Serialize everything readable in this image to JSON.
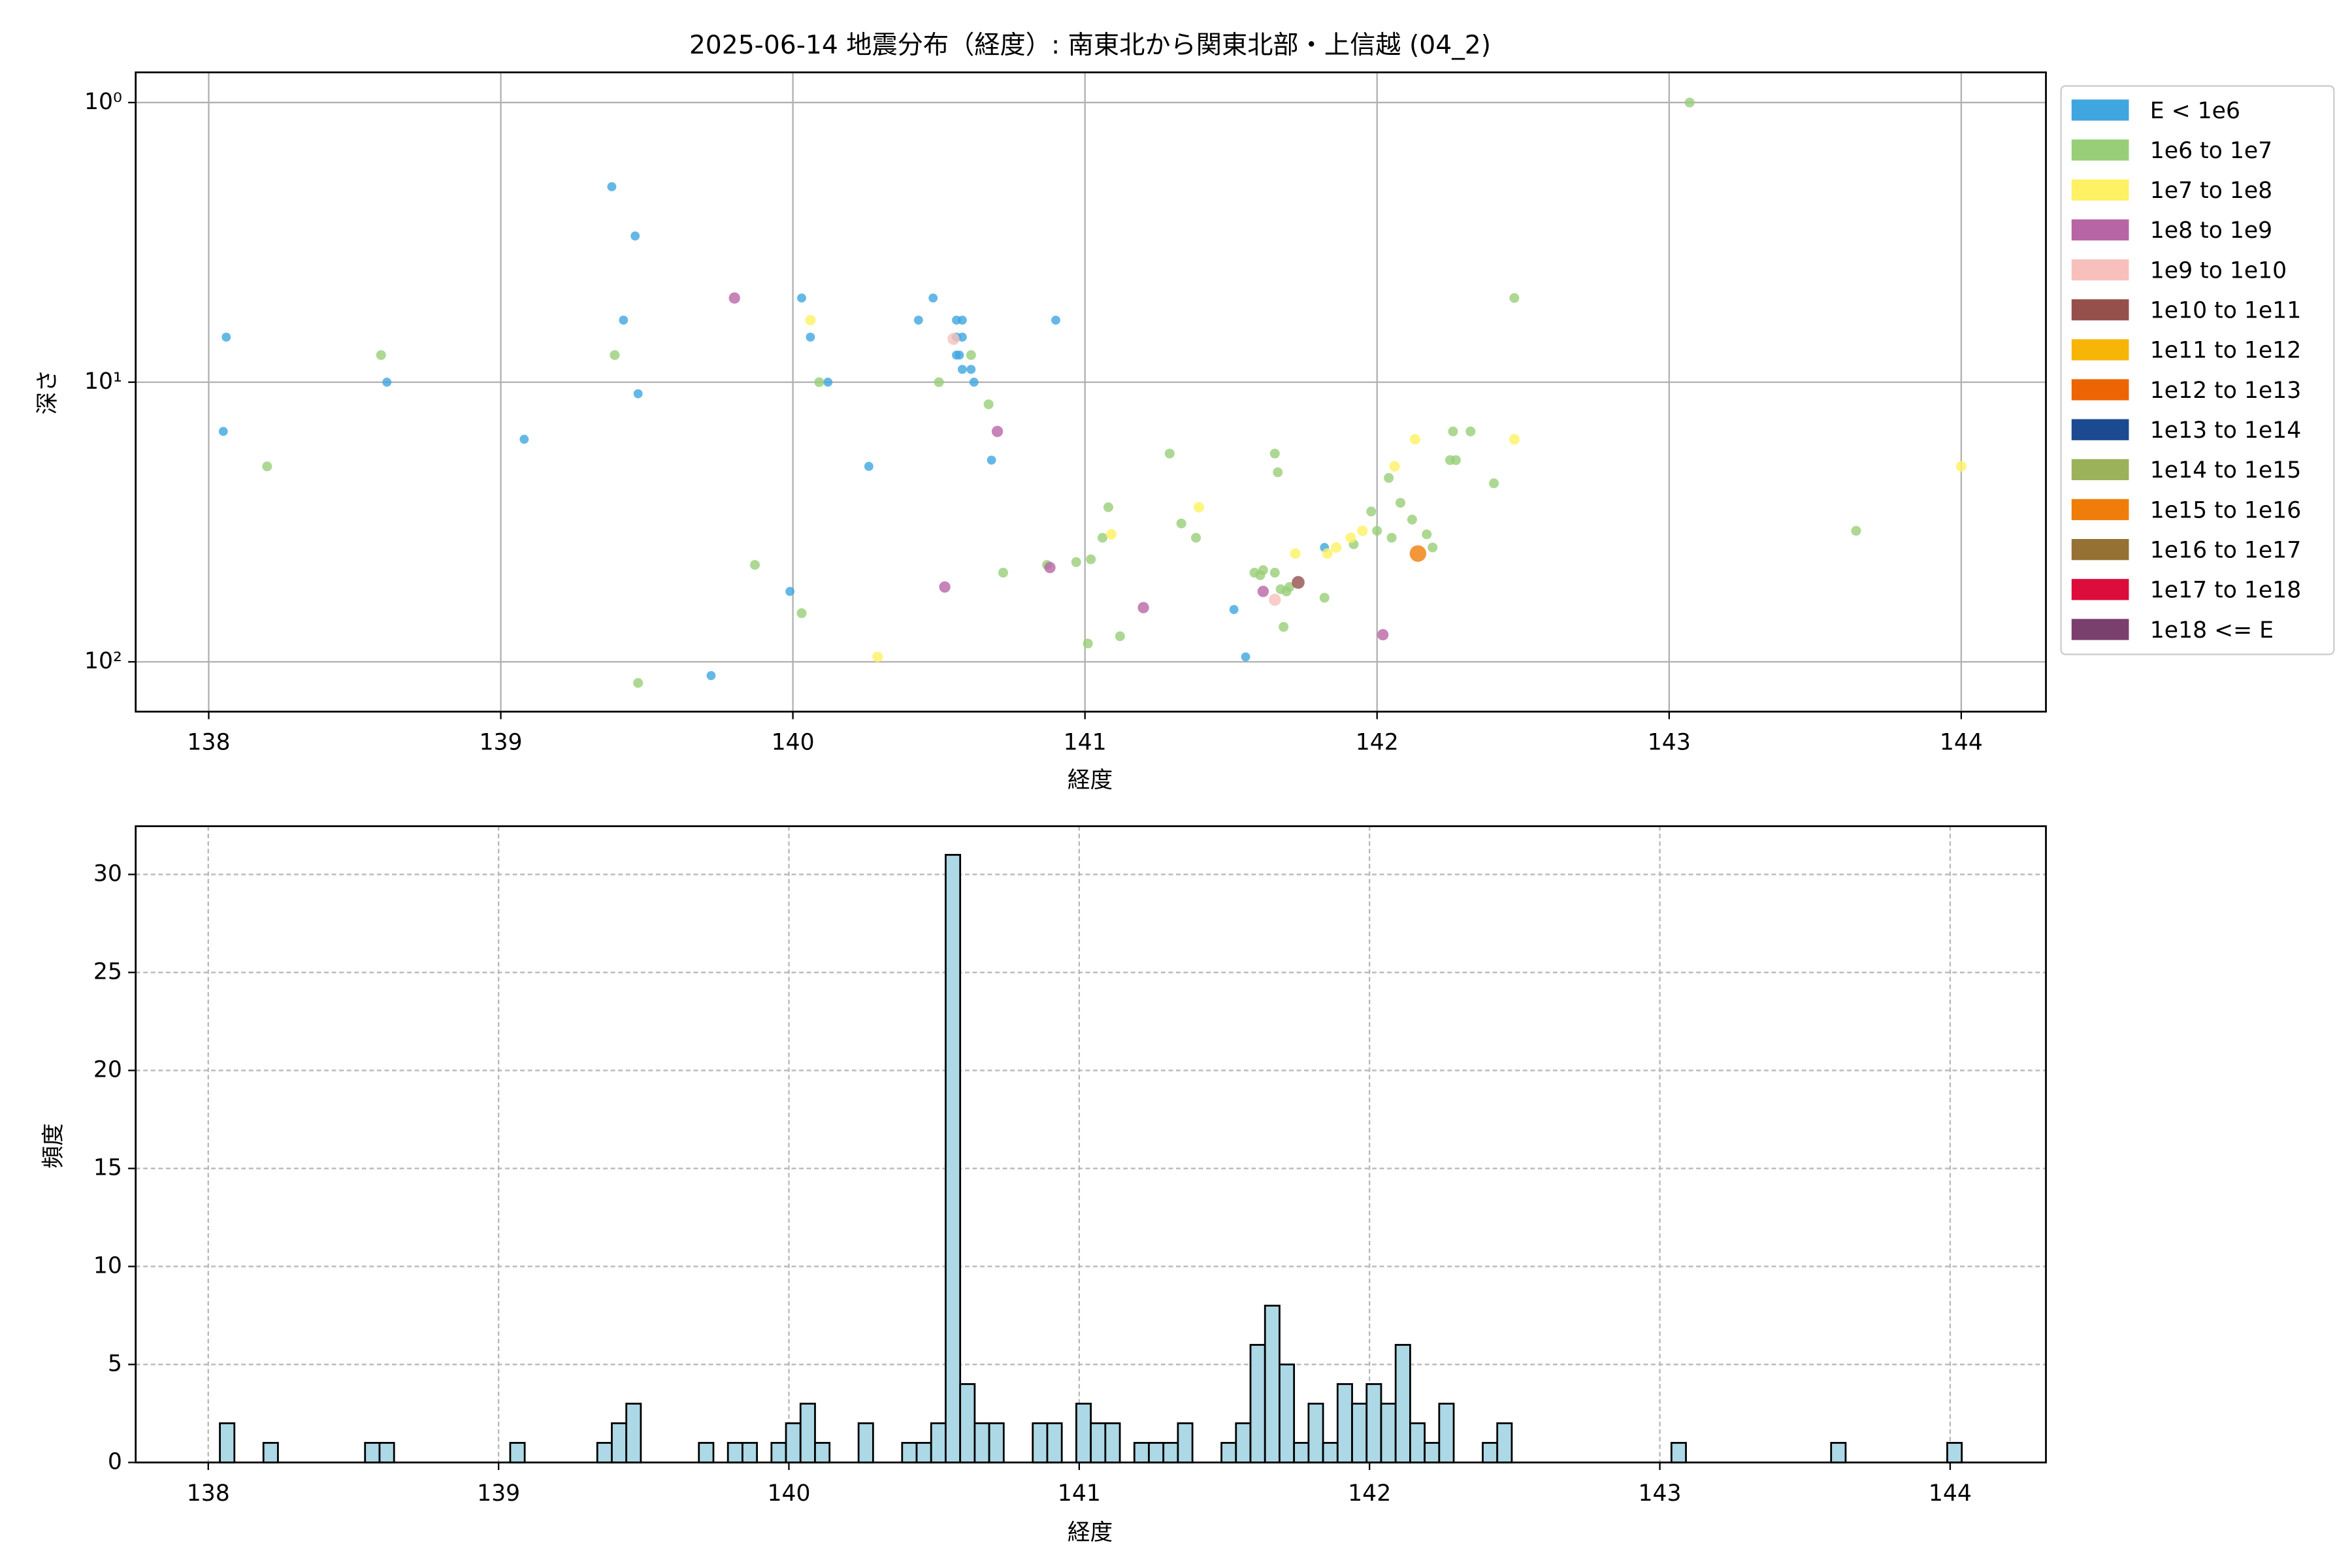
{
  "chart_data": [
    {
      "type": "scatter",
      "title": "2025-06-14 地震分布（経度）: 南東北から関東北部・上信越 (04_2)",
      "xlabel": "経度",
      "ylabel": "深さ",
      "xlim": [
        137.75,
        144.29
      ],
      "ylim": [
        150.7,
        0.78
      ],
      "yscale": "log",
      "xticks": [
        138,
        139,
        140,
        141,
        142,
        143,
        144
      ],
      "yticks": [
        {
          "value": 1,
          "label": "10⁰"
        },
        {
          "value": 10,
          "label": "10¹"
        },
        {
          "value": 100,
          "label": "10²"
        }
      ],
      "grid": true,
      "grid_style": "solid",
      "legend": "outside right",
      "series": [
        {
          "name": "E < 1e6",
          "color": "#3fa6e0",
          "x": [
            139.38,
            139.46,
            138.06,
            139.42,
            140.03,
            140.48,
            140.43,
            140.56,
            140.58,
            140.56,
            140.58,
            140.57,
            140.56,
            140.58,
            140.61,
            140.62,
            140.06,
            140.9,
            138.61,
            140.12,
            138.05,
            139.47,
            139.08,
            140.26,
            140.68,
            139.99,
            139.72,
            141.82,
            141.51,
            141.55
          ],
          "values": [
            2,
            3,
            6.9,
            6,
            5,
            5,
            6,
            6,
            6,
            6.9,
            6.9,
            8,
            8,
            9,
            9,
            10,
            6.9,
            6,
            10,
            10,
            15,
            11,
            16,
            20,
            19,
            56,
            112,
            39,
            65,
            96
          ]
        },
        {
          "name": "1e6 to 1e7",
          "color": "#98ce78",
          "x": [
            143.07,
            138.59,
            139.39,
            142.47,
            138.2,
            140.09,
            140.5,
            140.61,
            140.67,
            141.29,
            141.65,
            141.66,
            142.26,
            142.32,
            142.25,
            142.27,
            142.04,
            142.4,
            141.08,
            142.08,
            142.12,
            141.98,
            142.0,
            142.17,
            142.05,
            142.19,
            141.92,
            141.33,
            141.38,
            141.06,
            141.02,
            140.97,
            140.87,
            143.64,
            141.58,
            141.61,
            141.6,
            141.65,
            141.69,
            141.67,
            141.7,
            140.72,
            139.87,
            140.03,
            141.82,
            141.12,
            141.01,
            141.68,
            139.47
          ],
          "values": [
            1,
            8,
            8,
            5,
            20,
            10,
            10,
            8,
            12,
            18,
            18,
            21,
            15,
            15,
            19,
            19,
            22,
            23,
            28,
            27,
            31,
            29,
            34,
            35,
            36,
            39,
            38,
            32,
            36,
            36,
            43,
            44,
            45,
            34,
            48,
            47,
            49,
            48,
            56,
            55,
            54,
            48,
            45,
            67,
            59,
            81,
            86,
            75,
            119
          ]
        },
        {
          "name": "1e7 to 1e8",
          "color": "#fef163",
          "x": [
            140.06,
            142.13,
            142.47,
            142.06,
            141.39,
            141.09,
            141.72,
            141.86,
            141.91,
            141.95,
            141.83,
            140.29,
            144.0
          ],
          "values": [
            6,
            16,
            16,
            20,
            28,
            35,
            41,
            39,
            36,
            34,
            41,
            96,
            20
          ]
        },
        {
          "name": "1e8 to 1e9",
          "color": "#b865a5",
          "x": [
            139.8,
            140.7,
            140.88,
            140.52,
            141.2,
            141.61,
            142.02
          ],
          "values": [
            5,
            15,
            46,
            54,
            64,
            56,
            80
          ]
        },
        {
          "name": "1e9 to 1e10",
          "color": "#f7c0bc",
          "x": [
            141.65,
            140.55
          ],
          "values": [
            60,
            7
          ]
        },
        {
          "name": "1e10 to 1e11",
          "color": "#96504c",
          "x": [
            141.73
          ],
          "values": [
            52
          ]
        },
        {
          "name": "1e11 to 1e12",
          "color": "#f6b507",
          "x": [],
          "values": []
        },
        {
          "name": "1e12 to 1e13",
          "color": "#ed6405",
          "x": [],
          "values": []
        },
        {
          "name": "1e13 to 1e14",
          "color": "#1c4a90",
          "x": [],
          "values": []
        },
        {
          "name": "1e14 to 1e15",
          "color": "#9cb25a",
          "x": [],
          "values": []
        },
        {
          "name": "1e15 to 1e16",
          "color": "#f07d0a",
          "x": [
            142.14
          ],
          "values": [
            41
          ]
        },
        {
          "name": "1e16 to 1e17",
          "color": "#957133",
          "x": [],
          "values": []
        },
        {
          "name": "1e17 to 1e18",
          "color": "#dc0c3b",
          "x": [],
          "values": []
        },
        {
          "name": "1e18 <= E",
          "color": "#7a3f6d",
          "x": [],
          "values": []
        }
      ]
    },
    {
      "type": "histogram",
      "xlabel": "経度",
      "ylabel": "頻度",
      "xlim": [
        137.75,
        144.33
      ],
      "ylim": [
        0,
        32.46
      ],
      "xticks": [
        138,
        139,
        140,
        141,
        142,
        143,
        144
      ],
      "yticks": [
        0,
        5,
        10,
        15,
        20,
        25,
        30
      ],
      "grid": true,
      "grid_style": "dashed",
      "color": "#add8e6",
      "edgecolor": "#000000",
      "bins": [
        138.04,
        138.09,
        138.14,
        138.19,
        138.24,
        138.29,
        138.34,
        138.39,
        138.44,
        138.49,
        138.54,
        138.59,
        138.64,
        138.69,
        138.74,
        138.79,
        138.84,
        138.89,
        138.94,
        138.99,
        139.04,
        139.09,
        139.14,
        139.19,
        139.24,
        139.29,
        139.34,
        139.39,
        139.44,
        139.49,
        139.54,
        139.59,
        139.64,
        139.69,
        139.74,
        139.79,
        139.84,
        139.89,
        139.94,
        139.99,
        140.04,
        140.09,
        140.14,
        140.19,
        140.24,
        140.29,
        140.34,
        140.39,
        140.44,
        140.49,
        140.54,
        140.59,
        140.64,
        140.69,
        140.74,
        140.79,
        140.84,
        140.89,
        140.94,
        140.99,
        141.04,
        141.09,
        141.14,
        141.19,
        141.24,
        141.29,
        141.34,
        141.39,
        141.44,
        141.49,
        141.54,
        141.59,
        141.64,
        141.69,
        141.74,
        141.79,
        141.84,
        141.89,
        141.94,
        141.99,
        142.04,
        142.09,
        142.14,
        142.19,
        142.24,
        142.29,
        142.34,
        142.39,
        142.44,
        142.49,
        142.54,
        142.59,
        142.64,
        142.69,
        142.74,
        142.79,
        142.84,
        142.89,
        142.94,
        142.99,
        143.04,
        143.09,
        143.14,
        143.19,
        143.24,
        143.29,
        143.34,
        143.39,
        143.44,
        143.49,
        143.54,
        143.59,
        143.64,
        143.69,
        143.74,
        143.79,
        143.84,
        143.89,
        143.94,
        143.99,
        144.04
      ],
      "values": [
        2,
        0,
        0,
        1,
        0,
        0,
        0,
        0,
        0,
        0,
        1,
        1,
        0,
        0,
        0,
        0,
        0,
        0,
        0,
        0,
        1,
        0,
        0,
        0,
        0,
        0,
        1,
        2,
        3,
        0,
        0,
        0,
        0,
        1,
        0,
        1,
        1,
        0,
        1,
        2,
        3,
        1,
        0,
        0,
        2,
        0,
        0,
        1,
        1,
        2,
        31,
        4,
        2,
        2,
        0,
        0,
        2,
        2,
        0,
        3,
        2,
        2,
        0,
        1,
        1,
        1,
        2,
        0,
        0,
        1,
        2,
        6,
        8,
        5,
        1,
        3,
        1,
        4,
        3,
        4,
        3,
        6,
        2,
        1,
        3,
        0,
        0,
        1,
        2,
        0,
        0,
        0,
        0,
        0,
        0,
        0,
        0,
        0,
        0,
        0,
        1,
        0,
        0,
        0,
        0,
        0,
        0,
        0,
        0,
        0,
        0,
        1,
        0,
        0,
        0,
        0,
        0,
        0,
        0,
        1
      ]
    }
  ]
}
